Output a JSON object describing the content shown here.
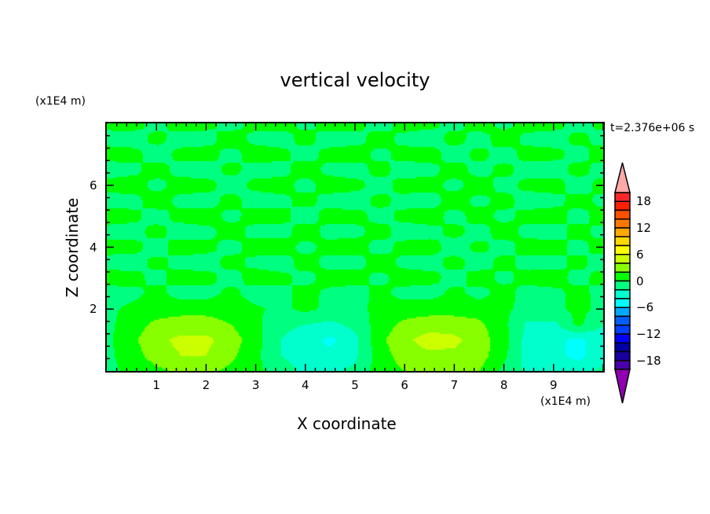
{
  "chart_data": {
    "type": "heatmap",
    "style": "filled contour",
    "title": "vertical velocity",
    "xlabel": "X coordinate",
    "ylabel": "Z coordinate",
    "x_unit": "(x1E4 m)",
    "z_unit": "(x1E4 m)",
    "time_label": "t=2.376e+06 s",
    "xlim": [
      0,
      10
    ],
    "ylim": [
      0,
      8
    ],
    "x_ticks": [
      "1",
      "2",
      "3",
      "4",
      "5",
      "6",
      "7",
      "8",
      "9"
    ],
    "y_ticks": [
      "2",
      "4",
      "6"
    ],
    "colorbar": {
      "levels": [
        -20,
        -18,
        -16,
        -14,
        -12,
        -10,
        -8,
        -6,
        -4,
        -2,
        0,
        2,
        4,
        6,
        8,
        10,
        12,
        14,
        16,
        18,
        20
      ],
      "tick_labels": [
        "18",
        "12",
        "6",
        "0",
        "-6",
        "-12",
        "-18"
      ],
      "tick_values": [
        18,
        12,
        6,
        0,
        -6,
        -12,
        -18
      ],
      "colors": [
        "#4a00a8",
        "#1800a0",
        "#0000a0",
        "#0000ff",
        "#0040ff",
        "#0060ff",
        "#00a8ff",
        "#00ffff",
        "#00ffcc",
        "#00ff80",
        "#00ff00",
        "#88ff00",
        "#ccff00",
        "#ffff00",
        "#ffd800",
        "#ffa800",
        "#ff7800",
        "#ff5000",
        "#ff2000",
        "#ff2828"
      ],
      "over_color": "#ffa8a8",
      "under_color": "#9000b0"
    },
    "x": [
      0,
      0.5,
      1,
      1.5,
      2,
      2.5,
      3,
      3.5,
      4,
      4.5,
      5,
      5.5,
      6,
      6.5,
      7,
      7.5,
      8,
      8.5,
      9,
      9.5,
      10
    ],
    "z": [
      0,
      0.5,
      1,
      1.5,
      2,
      2.5,
      3,
      3.5,
      4,
      4.5,
      5,
      5.5,
      6,
      6.5,
      7,
      7.5,
      8
    ],
    "values": [
      [
        -0.5,
        0.5,
        1.5,
        2.5,
        2.5,
        1.5,
        0.5,
        -1,
        -2.5,
        -2.5,
        -1.5,
        1,
        2,
        2.5,
        2.5,
        2,
        -0.5,
        -2.5,
        -2.5,
        -3,
        -1.5
      ],
      [
        -0.5,
        1,
        3,
        4,
        4,
        2.5,
        0.5,
        -2,
        -3,
        -3.5,
        -2.5,
        1,
        3,
        3.5,
        3.5,
        3,
        0.5,
        -3,
        -3.5,
        -4.5,
        -3
      ],
      [
        -0.5,
        1.5,
        3.5,
        4.5,
        4.5,
        3,
        0.8,
        -2,
        -3,
        -4.5,
        -2.5,
        1.5,
        3.5,
        5,
        4.5,
        3,
        0.8,
        -3,
        -3.5,
        -4.5,
        -3
      ],
      [
        -0.5,
        1,
        2.5,
        3,
        3,
        2,
        0.5,
        -1.5,
        -2,
        -2.5,
        -1.5,
        1,
        2.5,
        3,
        3,
        2.5,
        0.5,
        -2.5,
        -2.5,
        0.5,
        -2
      ],
      [
        -0.5,
        0.5,
        1,
        1.2,
        1.2,
        1,
        0.3,
        -0.5,
        0.5,
        -0.5,
        -0.5,
        0.5,
        1,
        1.2,
        1.2,
        1,
        0.3,
        -0.5,
        -0.5,
        0.5,
        -0.5
      ],
      [
        -0.8,
        -0.6,
        0.6,
        -0.8,
        -0.7,
        0.5,
        -0.8,
        -0.6,
        0.7,
        -0.5,
        -0.8,
        0.6,
        -0.7,
        -0.8,
        0.5,
        -0.6,
        0.7,
        -0.8,
        -0.5,
        0.6,
        -0.7
      ],
      [
        0.8,
        0.7,
        -0.6,
        0.8,
        0.6,
        -0.7,
        0.8,
        0.5,
        -0.6,
        0.8,
        0.7,
        -0.5,
        0.8,
        0.6,
        -0.7,
        0.8,
        -0.5,
        0.7,
        0.8,
        -0.6,
        0.7
      ],
      [
        -0.7,
        -0.8,
        0.5,
        -0.6,
        -0.8,
        0.6,
        -0.5,
        -0.8,
        0.7,
        -0.6,
        -0.7,
        0.8,
        -0.5,
        -0.7,
        0.6,
        -0.8,
        0.6,
        -0.7,
        -0.6,
        0.5,
        -0.8
      ],
      [
        0.7,
        0.6,
        -0.7,
        0.8,
        0.5,
        -0.6,
        0.7,
        0.8,
        -0.5,
        0.6,
        0.8,
        -0.7,
        0.6,
        0.7,
        -0.8,
        0.5,
        -0.7,
        0.8,
        0.6,
        -0.5,
        0.7
      ],
      [
        -0.6,
        -0.7,
        0.6,
        -0.8,
        -0.5,
        0.7,
        -0.6,
        -0.7,
        0.8,
        -0.6,
        -0.5,
        0.7,
        -0.8,
        -0.6,
        0.5,
        -0.7,
        0.8,
        -0.6,
        -0.7,
        0.6,
        -0.6
      ],
      [
        0.8,
        0.5,
        -0.7,
        0.6,
        0.8,
        -0.5,
        0.7,
        0.6,
        -0.8,
        0.7,
        0.6,
        -0.6,
        0.5,
        0.8,
        -0.6,
        0.7,
        -0.5,
        0.6,
        0.8,
        -0.7,
        0.8
      ],
      [
        -0.7,
        -0.6,
        0.8,
        -0.5,
        -0.7,
        0.6,
        -0.8,
        -0.5,
        0.6,
        -0.7,
        -0.8,
        0.5,
        -0.6,
        -0.7,
        0.8,
        -0.5,
        0.6,
        -0.8,
        -0.6,
        0.7,
        -0.5
      ],
      [
        0.6,
        0.8,
        -0.5,
        0.7,
        0.6,
        -0.8,
        0.5,
        0.7,
        -0.6,
        0.8,
        0.5,
        -0.7,
        0.7,
        0.6,
        -0.5,
        0.8,
        -0.6,
        0.5,
        0.7,
        -0.8,
        0.6
      ],
      [
        -0.8,
        -0.5,
        0.7,
        -0.6,
        -0.8,
        0.5,
        -0.7,
        -0.6,
        0.8,
        -0.5,
        -0.7,
        0.6,
        -0.8,
        -0.5,
        0.7,
        -0.6,
        0.5,
        -0.7,
        -0.8,
        0.6,
        -0.7
      ],
      [
        0.7,
        0.6,
        -0.8,
        0.5,
        0.7,
        -0.6,
        0.8,
        0.5,
        -0.7,
        0.6,
        0.8,
        -0.5,
        0.6,
        0.7,
        -0.8,
        0.5,
        -0.7,
        0.6,
        0.5,
        -0.6,
        0.8
      ],
      [
        -0.6,
        -0.8,
        0.5,
        -0.7,
        -0.6,
        0.8,
        -0.5,
        -0.7,
        0.6,
        -0.8,
        -0.6,
        0.7,
        -0.5,
        -0.8,
        0.6,
        -0.7,
        0.8,
        -0.5,
        -0.7,
        0.5,
        -0.6
      ],
      [
        0.5,
        0.7,
        -0.6,
        0.8,
        0.5,
        -0.7,
        0.6,
        0.8,
        -0.5,
        0.7,
        0.6,
        -0.8,
        0.7,
        0.5,
        -0.6,
        0.8,
        -0.5,
        0.7,
        0.6,
        -0.7,
        0.5
      ]
    ]
  }
}
